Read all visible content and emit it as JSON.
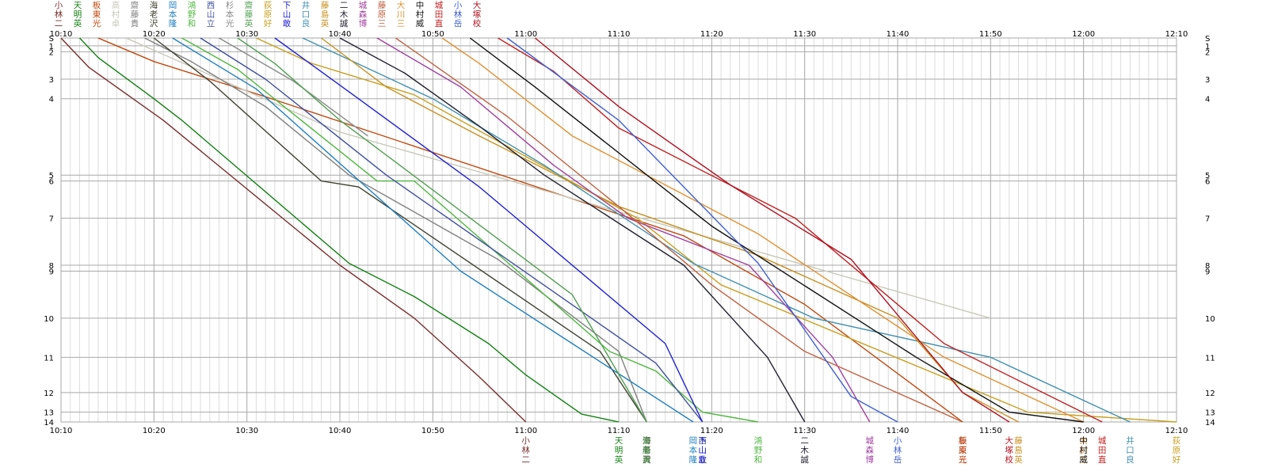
{
  "chart_data": {
    "type": "line",
    "title": "",
    "xlabel": "",
    "ylabel": "",
    "x_ticks": [
      "10:10",
      "10:20",
      "10:30",
      "10:40",
      "10:50",
      "11:00",
      "11:10",
      "11:20",
      "11:30",
      "11:40",
      "11:50",
      "12:00",
      "12:10"
    ],
    "xlim": [
      "10:10",
      "12:10"
    ],
    "y_ticks": [
      "S",
      "1",
      "2",
      "3",
      "4",
      "5",
      "6",
      "7",
      "8",
      "9",
      "10",
      "11",
      "12",
      "13",
      "14"
    ],
    "y_tick_km": [
      0,
      0.4,
      0.7,
      2.1,
      3.1,
      7.0,
      7.3,
      9.2,
      11.6,
      11.9,
      14.3,
      16.3,
      18.1,
      19.1,
      19.6
    ],
    "ylim": [
      0,
      19.6
    ],
    "grid": true,
    "series": [
      {
        "top": "小林二",
        "bottom": "小林二",
        "color": "#7a2e2e",
        "points": [
          [
            "10:10",
            0
          ],
          [
            "10:13",
            1.5
          ],
          [
            "10:21",
            4.2
          ],
          [
            "10:40",
            11.6
          ],
          [
            "10:48",
            14.3
          ],
          [
            "10:55",
            17.3
          ],
          [
            "11:00",
            19.6
          ]
        ]
      },
      {
        "top": "天明英",
        "bottom": "天明英",
        "color": "#108010",
        "points": [
          [
            "10:12",
            0
          ],
          [
            "10:14",
            1.0
          ],
          [
            "10:20",
            3.1
          ],
          [
            "10:23",
            4.2
          ],
          [
            "10:41",
            11.5
          ],
          [
            "10:48",
            13.2
          ],
          [
            "10:56",
            15.6
          ],
          [
            "11:00",
            17.2
          ],
          [
            "11:06",
            19.2
          ],
          [
            "11:10",
            19.6
          ]
        ]
      },
      {
        "top": "板東光",
        "bottom": "板東光",
        "color": "#c04a10",
        "points": [
          [
            "10:14",
            0
          ],
          [
            "10:20",
            1.2
          ],
          [
            "10:32",
            3.0
          ],
          [
            "11:17",
            10.1
          ],
          [
            "11:30",
            13.6
          ],
          [
            "11:47",
            19.6
          ]
        ]
      },
      {
        "top": "高村卓",
        "bottom": "",
        "color": "#c8c8b8",
        "points": [
          [
            "10:17",
            0
          ],
          [
            "10:40",
            4.8
          ],
          [
            "11:50",
            14.3
          ]
        ]
      },
      {
        "top": "齋藤貴",
        "bottom": "齋藤貴",
        "color": "#808080",
        "points": [
          [
            "10:19",
            0
          ],
          [
            "10:24",
            1.2
          ],
          [
            "10:32",
            3.5
          ],
          [
            "10:41",
            7.0
          ],
          [
            "10:57",
            11.3
          ],
          [
            "11:10",
            16.0
          ],
          [
            "11:13",
            19.6
          ]
        ]
      },
      {
        "top": "海老沢",
        "bottom": "海老沢",
        "color": "#404030",
        "points": [
          [
            "10:20",
            0
          ],
          [
            "10:26",
            2.2
          ],
          [
            "10:38",
            7.3
          ],
          [
            "10:42",
            7.6
          ],
          [
            "11:08",
            16.0
          ],
          [
            "11:13",
            19.6
          ]
        ]
      },
      {
        "top": "岡本隆",
        "bottom": "岡本隆",
        "color": "#2080c0",
        "points": [
          [
            "10:22",
            0
          ],
          [
            "10:31",
            2.6
          ],
          [
            "10:53",
            11.9
          ],
          [
            "11:05",
            15.6
          ],
          [
            "11:18",
            19.6
          ]
        ]
      },
      {
        "top": "鴻野和",
        "bottom": "鴻野和",
        "color": "#50b840",
        "points": [
          [
            "10:23",
            0
          ],
          [
            "10:29",
            1.6
          ],
          [
            "10:44",
            7.3
          ],
          [
            "10:48",
            7.3
          ],
          [
            "11:09",
            16.0
          ],
          [
            "11:14",
            17.0
          ],
          [
            "11:19",
            19.1
          ],
          [
            "11:25",
            19.6
          ]
        ]
      },
      {
        "top": "西山立",
        "bottom": "西山立",
        "color": "#4050a0",
        "points": [
          [
            "10:25",
            0
          ],
          [
            "10:32",
            2.1
          ],
          [
            "10:45",
            7.0
          ],
          [
            "11:14",
            16.6
          ],
          [
            "11:19",
            19.6
          ]
        ]
      },
      {
        "top": "杉本光",
        "bottom": "",
        "color": "#8a8a8a",
        "points": [
          [
            "10:27",
            0
          ],
          [
            "10:35",
            2.2
          ],
          [
            "10:43",
            5.0
          ]
        ]
      },
      {
        "top": "齋藤英",
        "bottom": "齋藤英",
        "color": "#50a050",
        "points": [
          [
            "10:29",
            0
          ],
          [
            "10:33",
            1.3
          ],
          [
            "10:40",
            4.2
          ],
          [
            "11:05",
            13.1
          ],
          [
            "11:13",
            19.6
          ]
        ]
      },
      {
        "top": "荻原好",
        "bottom": "荻原好",
        "color": "#c8a020",
        "points": [
          [
            "10:31",
            0
          ],
          [
            "10:37",
            1.3
          ],
          [
            "10:48",
            2.9
          ],
          [
            "11:12",
            9.2
          ],
          [
            "11:21",
            12.6
          ],
          [
            "11:54",
            19.1
          ],
          [
            "12:10",
            19.6
          ]
        ]
      },
      {
        "top": "下山敢",
        "bottom": "下山敢",
        "color": "#2020d0",
        "points": [
          [
            "10:33",
            0
          ],
          [
            "10:42",
            3.1
          ],
          [
            "10:55",
            7.6
          ],
          [
            "11:15",
            15.6
          ],
          [
            "11:19",
            19.6
          ]
        ]
      },
      {
        "top": "井口良",
        "bottom": "井口良",
        "color": "#4090b0",
        "points": [
          [
            "10:36",
            0
          ],
          [
            "10:50",
            3.1
          ],
          [
            "11:02",
            6.5
          ],
          [
            "11:18",
            11.5
          ],
          [
            "11:31",
            14.3
          ],
          [
            "11:50",
            16.3
          ],
          [
            "12:05",
            19.6
          ]
        ]
      },
      {
        "top": "藤島英",
        "bottom": "藤島英",
        "color": "#c89020",
        "points": [
          [
            "10:38",
            0
          ],
          [
            "10:45",
            2.5
          ],
          [
            "10:55",
            5.0
          ],
          [
            "11:10",
            8.6
          ],
          [
            "11:25",
            11.1
          ],
          [
            "11:40",
            14.3
          ],
          [
            "11:47",
            18.1
          ],
          [
            "11:53",
            19.6
          ]
        ]
      },
      {
        "top": "二木誠",
        "bottom": "二木誠",
        "color": "#202030",
        "points": [
          [
            "10:40",
            0
          ],
          [
            "10:47",
            1.8
          ],
          [
            "10:55",
            4.5
          ],
          [
            "11:02",
            7.0
          ],
          [
            "11:17",
            11.6
          ],
          [
            "11:26",
            16.3
          ],
          [
            "11:30",
            19.6
          ]
        ]
      },
      {
        "top": "城森博",
        "bottom": "城森博",
        "color": "#a040a0",
        "points": [
          [
            "10:44",
            0
          ],
          [
            "10:53",
            2.5
          ],
          [
            "11:03",
            6.5
          ],
          [
            "11:11",
            9.2
          ],
          [
            "11:24",
            11.6
          ],
          [
            "11:33",
            16.3
          ],
          [
            "11:37",
            19.6
          ]
        ]
      },
      {
        "top": "藤原三",
        "bottom": "藤原三",
        "color": "#c06040",
        "points": [
          [
            "10:46",
            0
          ],
          [
            "10:58",
            4.0
          ],
          [
            "11:10",
            8.6
          ],
          [
            "11:20",
            12.6
          ],
          [
            "11:30",
            16.0
          ],
          [
            "11:47",
            19.6
          ]
        ]
      },
      {
        "top": "大川三",
        "bottom": "大川三",
        "color": "#e09030",
        "points": [
          [
            "10:51",
            0
          ],
          [
            "10:55",
            1.3
          ],
          [
            "11:05",
            5.0
          ],
          [
            "11:25",
            10.0
          ],
          [
            "11:45",
            16.3
          ],
          [
            "12:00",
            19.6
          ]
        ]
      },
      {
        "top": "中村威",
        "bottom": "中村威",
        "color": "#101010",
        "points": [
          [
            "10:54",
            0
          ],
          [
            "11:01",
            2.5
          ],
          [
            "11:20",
            9.6
          ],
          [
            "11:42",
            16.3
          ],
          [
            "11:52",
            19.1
          ],
          [
            "12:00",
            19.6
          ]
        ]
      },
      {
        "top": "城田直",
        "bottom": "城田直",
        "color": "#c02020",
        "points": [
          [
            "10:57",
            0
          ],
          [
            "11:03",
            1.7
          ],
          [
            "11:10",
            4.6
          ],
          [
            "11:29",
            9.2
          ],
          [
            "11:45",
            15.6
          ],
          [
            "12:02",
            19.6
          ]
        ]
      },
      {
        "top": "小林岳",
        "bottom": "小林岳",
        "color": "#4060d0",
        "points": [
          [
            "10:58",
            0
          ],
          [
            "11:10",
            4.2
          ],
          [
            "11:25",
            11.5
          ],
          [
            "11:35",
            18.3
          ],
          [
            "11:40",
            19.6
          ]
        ]
      },
      {
        "top": "大塚校",
        "bottom": "大塚校",
        "color": "#b01020",
        "points": [
          [
            "11:01",
            0
          ],
          [
            "11:10",
            3.5
          ],
          [
            "11:22",
            7.5
          ],
          [
            "11:35",
            11.3
          ],
          [
            "11:47",
            18.1
          ],
          [
            "11:52",
            19.6
          ]
        ]
      }
    ]
  }
}
